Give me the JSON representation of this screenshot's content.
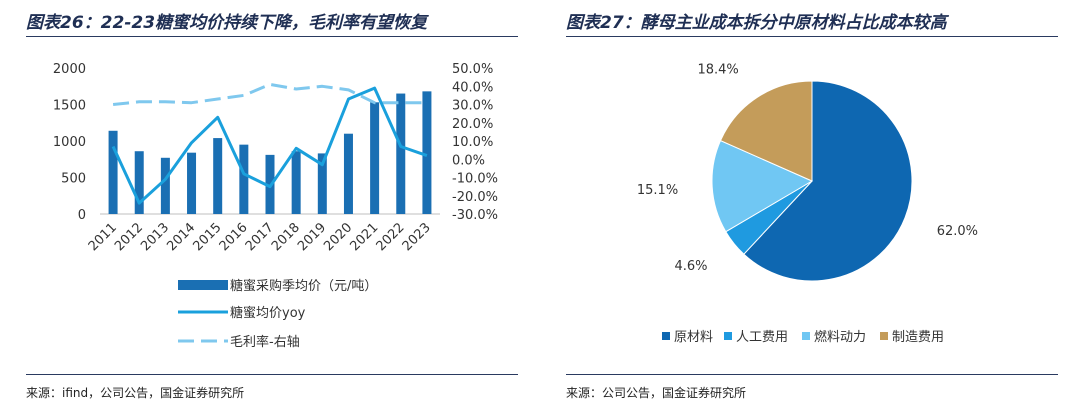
{
  "left": {
    "title": "图表26：22-23糖蜜均价持续下降，毛利率有望恢复",
    "source": "来源：ifind，公司公告，国金证券研究所"
  },
  "right": {
    "title": "图表27：酵母主业成本拆分中原材料占比成本较高",
    "source": "来源：公司公告，国金证券研究所"
  },
  "colors": {
    "bar": "#1a6fb3",
    "yoy": "#1aa0dc",
    "margin": "#7fc8ee",
    "pie": [
      "#0e67b1",
      "#1f9ae0",
      "#70c7f3",
      "#c49c5a"
    ]
  },
  "chart_data": [
    {
      "type": "bar",
      "categories": [
        "2011",
        "2012",
        "2013",
        "2014",
        "2015",
        "2016",
        "2017",
        "2018",
        "2019",
        "2020",
        "2021",
        "2022",
        "2023"
      ],
      "series": [
        {
          "name": "糖蜜采购季均价（元/吨）",
          "type": "bar",
          "axis": "left",
          "values": [
            1140,
            860,
            770,
            840,
            1040,
            950,
            810,
            860,
            830,
            1100,
            1530,
            1650,
            1680
          ]
        },
        {
          "name": "糖蜜均价yoy",
          "type": "line",
          "axis": "right",
          "values": [
            7.0,
            -24.0,
            -11.0,
            9.0,
            23.0,
            -8.0,
            -15.0,
            6.0,
            -3.0,
            33.0,
            39.0,
            7.0,
            2.0
          ]
        },
        {
          "name": "毛利率-右轴",
          "type": "line-dashed",
          "axis": "right",
          "values": [
            30.0,
            31.5,
            31.5,
            31.0,
            33.0,
            35.0,
            41.0,
            38.5,
            40.0,
            38.0,
            31.0,
            31.0,
            31.0
          ]
        }
      ],
      "yticks_left": [
        "0",
        "500",
        "1000",
        "1500",
        "2000"
      ],
      "ylim_left": [
        0,
        2000
      ],
      "yticks_right": [
        "-30.0%",
        "-20.0%",
        "-10.0%",
        "0.0%",
        "10.0%",
        "20.0%",
        "30.0%",
        "40.0%",
        "50.0%"
      ],
      "ylim_right": [
        -30,
        50
      ],
      "legend": [
        {
          "label": "糖蜜采购季均价（元/吨）"
        },
        {
          "label": "糖蜜均价yoy"
        },
        {
          "label": "毛利率-右轴"
        }
      ],
      "legend_position": "bottom"
    },
    {
      "type": "pie",
      "slices": [
        {
          "label": "原材料",
          "value": 62.0,
          "text": "62.0%"
        },
        {
          "label": "人工费用",
          "value": 4.6,
          "text": "4.6%"
        },
        {
          "label": "燃料动力",
          "value": 15.1,
          "text": "15.1%"
        },
        {
          "label": "制造费用",
          "value": 18.4,
          "text": "18.4%"
        }
      ],
      "legend_position": "bottom"
    }
  ]
}
